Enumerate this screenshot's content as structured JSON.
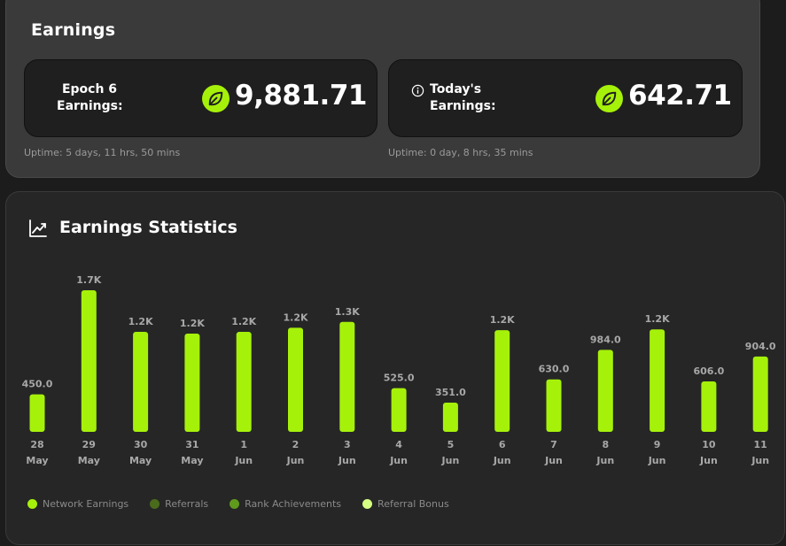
{
  "earnings_card": {
    "title": "Earnings",
    "epoch": {
      "label_line1": "Epoch 6",
      "label_line2": "Earnings:",
      "value": "9,881.71",
      "uptime": "Uptime: 5 days, 11 hrs, 50 mins"
    },
    "today": {
      "label_line1": "Today's",
      "label_line2": "Earnings:",
      "value": "642.71",
      "uptime": "Uptime: 0 day, 8 hrs, 35 mins"
    }
  },
  "stats_card": {
    "title": "Earnings Statistics"
  },
  "colors": {
    "accent": "#a6f10a",
    "referrals": "#4b6b1c",
    "rank": "#5f9a1c",
    "referral_bonus": "#d6ff84"
  },
  "icons": {
    "leaf": "leaf-icon",
    "info": "info-icon",
    "trend": "trending-up-icon"
  },
  "chart_data": {
    "type": "bar",
    "categories": [
      [
        "28",
        "May"
      ],
      [
        "29",
        "May"
      ],
      [
        "30",
        "May"
      ],
      [
        "31",
        "May"
      ],
      [
        "1",
        "Jun"
      ],
      [
        "2",
        "Jun"
      ],
      [
        "3",
        "Jun"
      ],
      [
        "4",
        "Jun"
      ],
      [
        "5",
        "Jun"
      ],
      [
        "6",
        "Jun"
      ],
      [
        "7",
        "Jun"
      ],
      [
        "8",
        "Jun"
      ],
      [
        "9",
        "Jun"
      ],
      [
        "10",
        "Jun"
      ],
      [
        "11",
        "Jun"
      ]
    ],
    "values": [
      450,
      1700,
      1200,
      1180,
      1200,
      1250,
      1320,
      525,
      351,
      1220,
      630,
      984,
      1230,
      606,
      904
    ],
    "value_labels": [
      "450.0",
      "1.7K",
      "1.2K",
      "1.2K",
      "1.2K",
      "1.2K",
      "1.3K",
      "525.0",
      "351.0",
      "1.2K",
      "630.0",
      "984.0",
      "1.2K",
      "606.0",
      "904.0"
    ],
    "legend": [
      {
        "name": "Network Earnings",
        "color": "#a6f10a"
      },
      {
        "name": "Referrals",
        "color": "#4b6b1c"
      },
      {
        "name": "Rank Achievements",
        "color": "#5f9a1c"
      },
      {
        "name": "Referral Bonus",
        "color": "#d6ff84"
      }
    ],
    "legend_position": "bottom",
    "grid": false
  }
}
